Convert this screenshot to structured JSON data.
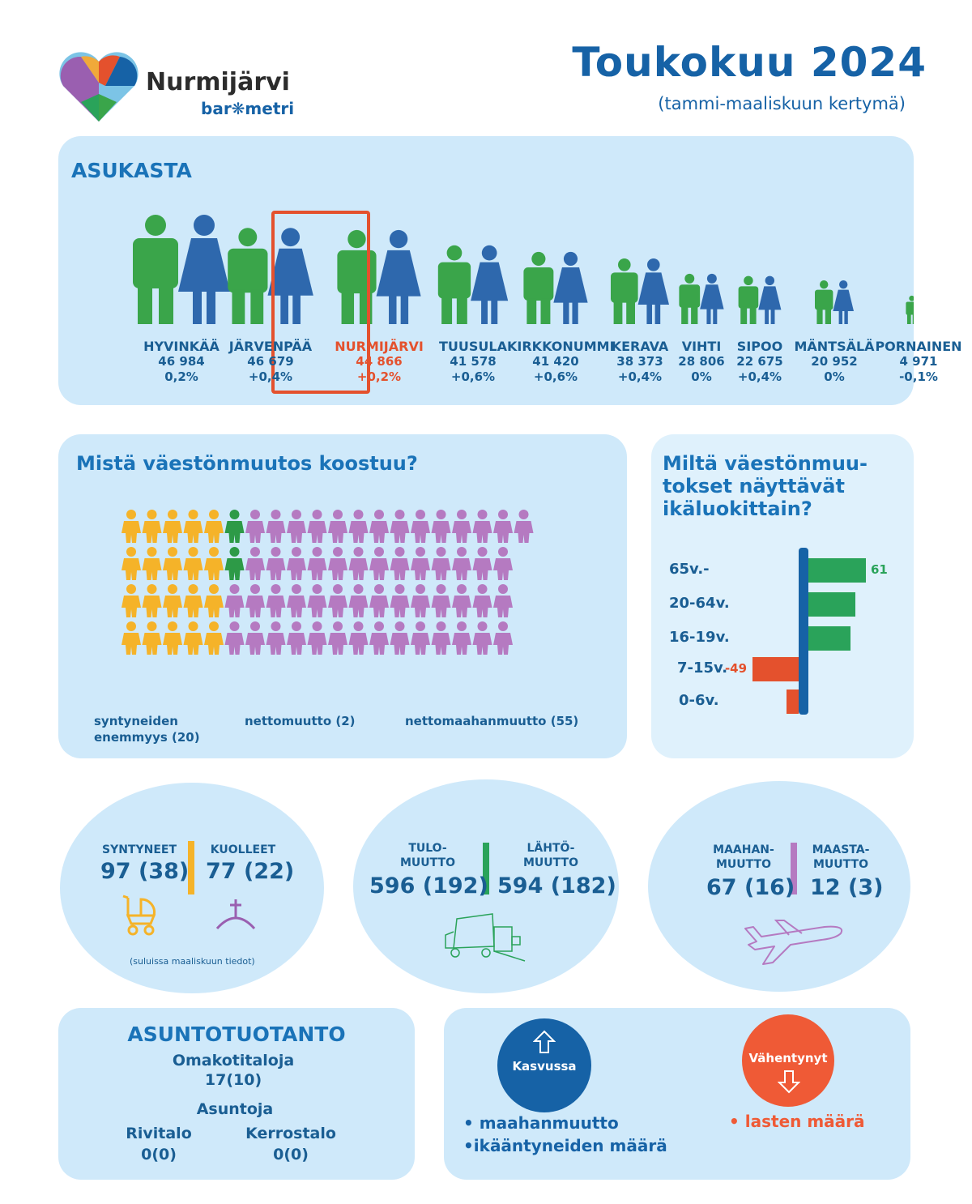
{
  "header": {
    "logo_name": "Nurmijärvi",
    "logo_sub": "bar❋metri",
    "title": "Toukokuu 2024",
    "subtitle": "(tammi-maaliskuun kertymä)"
  },
  "residents": {
    "heading": "ASUKASTA",
    "cities": [
      {
        "name": "HYVINKÄÄ",
        "population": "46 984",
        "change": "0,2%"
      },
      {
        "name": "JÄRVENPÄÄ",
        "population": "46 679",
        "change": "+0,4%"
      },
      {
        "name": "NURMIJÄRVI",
        "population": "44 866",
        "change": "+0,2%"
      },
      {
        "name": "TUUSULA",
        "population": "41 578",
        "change": "+0,6%"
      },
      {
        "name": "KIRKKONUMMI",
        "population": "41 420",
        "change": "+0,6%"
      },
      {
        "name": "KERAVA",
        "population": "38 373",
        "change": "+0,4%"
      },
      {
        "name": "VIHTI",
        "population": "28 806",
        "change": "0%"
      },
      {
        "name": "SIPOO",
        "population": "22 675",
        "change": "+0,4%"
      },
      {
        "name": "MÄNTSÄLÄ",
        "population": "20 952",
        "change": "0%"
      },
      {
        "name": "PORNAINEN",
        "population": "4 971",
        "change": "-0,1%"
      }
    ],
    "colors": {
      "male": "#3aa54a",
      "female": "#2e68ad",
      "highlight": "#e4512d"
    }
  },
  "composition": {
    "heading": "Mistä väestönmuutos koostuu?",
    "birth_surplus": {
      "label": "syntyneiden enemmyys (20)",
      "count": 20,
      "color": "#f5b329"
    },
    "net_migration": {
      "label": "nettomuutto (2)",
      "count": 2,
      "color": "#2d9a47"
    },
    "net_immigration": {
      "label": "nettomaahanmuutto (55)",
      "count": 55,
      "color": "#b57ac1"
    }
  },
  "age_chart": {
    "heading_lines": [
      "Miltä väestönmuu-",
      "tokset näyttävät",
      "ikäluokittain?"
    ],
    "chart_data": {
      "type": "bar",
      "orientation": "horizontal",
      "categories": [
        "65v.-",
        "20-64v.",
        "16-19v.",
        "7-15v.",
        "0-6v."
      ],
      "values": [
        61,
        50,
        45,
        -49,
        -13
      ],
      "labels": [
        "61",
        "",
        "",
        "-49",
        ""
      ],
      "colors": {
        "positive": "#2aa35a",
        "negative": "#e4512d",
        "axis": "#1662a6"
      }
    }
  },
  "births_deaths": {
    "born_label": "SYNTYNEET",
    "born_value": "97 (38)",
    "died_label": "KUOLLEET",
    "died_value": "77 (22)",
    "note": "(suluissa maaliskuun tiedot)",
    "icons": [
      "stroller-icon",
      "grave-icon"
    ]
  },
  "migration": {
    "in_label": [
      "TULO-",
      "MUUTTO"
    ],
    "in_value": "596 (192)",
    "out_label": [
      "LÄHTÖ-",
      "MUUTTO"
    ],
    "out_value": "594 (182)",
    "icon": "moving-truck-icon"
  },
  "immigration": {
    "in_label": [
      "MAAHAN-",
      "MUUTTO"
    ],
    "in_value": "67 (16)",
    "out_label": [
      "MAASTA-",
      "MUUTTO"
    ],
    "out_value": "12 (3)",
    "icon": "airplane-icon"
  },
  "housing": {
    "heading": "ASUNTOTUOTANTO",
    "detached_label": "Omakotitaloja",
    "detached_value": "17(10)",
    "apartments_label": "Asuntoja",
    "row_label": "Rivitalo",
    "row_value": "0(0)",
    "block_label": "Kerrostalo",
    "block_value": "0(0)"
  },
  "trends": {
    "growing_label": "Kasvussa",
    "growing_items": [
      "• maahanmuutto",
      "•ikääntyneiden määrä"
    ],
    "declining_label": "Vähentynyt",
    "declining_items": [
      "• lasten määrä"
    ],
    "colors": {
      "growing": "#1662a6",
      "declining": "#ef5a36"
    }
  }
}
